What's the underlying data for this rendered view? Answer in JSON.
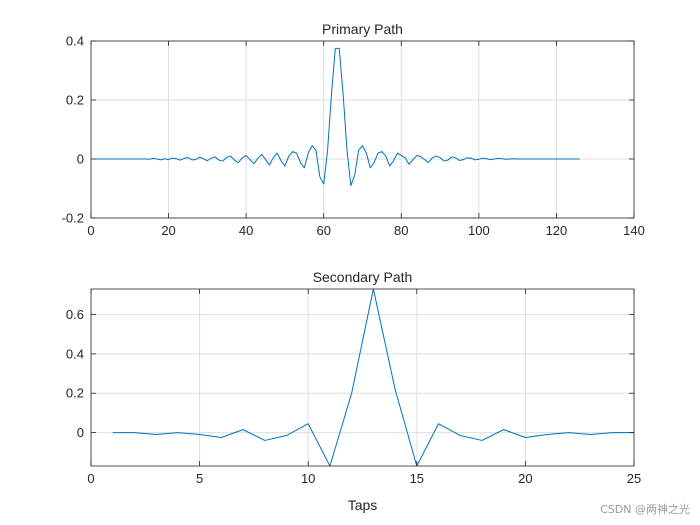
{
  "watermark": "CSDN @两神之光",
  "chart_data": [
    {
      "type": "line",
      "title": "Primary Path",
      "xlabel": "",
      "ylabel": "",
      "xlim": [
        0,
        140
      ],
      "ylim": [
        -0.2,
        0.4
      ],
      "xticks": [
        0,
        20,
        40,
        60,
        80,
        100,
        120,
        140
      ],
      "yticks": [
        -0.2,
        0,
        0.2,
        0.4
      ],
      "xtick_labels": [
        "0",
        "20",
        "40",
        "60",
        "80",
        "100",
        "120",
        "140"
      ],
      "ytick_labels": [
        "-0.2",
        "0",
        "0.2",
        "0.4"
      ],
      "grid": true,
      "line_color": "#0072BD",
      "series": [
        {
          "x": [
            1,
            2,
            3,
            4,
            5,
            6,
            7,
            8,
            9,
            10,
            11,
            12,
            13,
            14,
            15,
            16,
            17,
            18,
            19,
            20,
            21,
            22,
            23,
            24,
            25,
            26,
            27,
            28,
            29,
            30,
            31,
            32,
            33,
            34,
            35,
            36,
            37,
            38,
            39,
            40,
            41,
            42,
            43,
            44,
            45,
            46,
            47,
            48,
            49,
            50,
            51,
            52,
            53,
            54,
            55,
            56,
            57,
            58,
            59,
            60,
            61,
            62,
            63,
            64,
            65,
            66,
            67,
            68,
            69,
            70,
            71,
            72,
            73,
            74,
            75,
            76,
            77,
            78,
            79,
            80,
            81,
            82,
            83,
            84,
            85,
            86,
            87,
            88,
            89,
            90,
            91,
            92,
            93,
            94,
            95,
            96,
            97,
            98,
            99,
            100,
            101,
            102,
            103,
            104,
            105,
            106,
            107,
            108,
            109,
            110,
            111,
            112,
            113,
            114,
            115,
            116,
            117,
            118,
            119,
            120,
            121,
            122,
            123,
            124,
            125,
            126
          ],
          "y": [
            0,
            0,
            0,
            0,
            0,
            0,
            0,
            0,
            0,
            0,
            0,
            0,
            0,
            0,
            -0.001,
            0.002,
            0,
            -0.003,
            0.001,
            -0.002,
            0.003,
            0.001,
            -0.004,
            0.002,
            0.005,
            -0.003,
            -0.002,
            0.006,
            0.001,
            -0.006,
            0.003,
            0.007,
            -0.004,
            -0.007,
            0.006,
            0.01,
            -0.004,
            -0.012,
            0.004,
            0.012,
            -0.002,
            -0.016,
            0.002,
            0.016,
            -0.002,
            -0.02,
            0.004,
            0.02,
            -0.006,
            -0.024,
            0.01,
            0.025,
            0.02,
            -0.012,
            -0.03,
            0.02,
            0.045,
            0.03,
            -0.06,
            -0.085,
            0.03,
            0.22,
            0.375,
            0.375,
            0.22,
            0.03,
            -0.09,
            -0.055,
            0.03,
            0.045,
            0.02,
            -0.03,
            -0.012,
            0.02,
            0.025,
            0.01,
            -0.024,
            -0.006,
            0.02,
            0.012,
            0.004,
            -0.018,
            -0.002,
            0.012,
            0.008,
            -0.002,
            -0.012,
            0.004,
            0.01,
            0.005,
            -0.007,
            -0.004,
            0.007,
            0.004,
            -0.005,
            -0.002,
            0.004,
            0.003,
            -0.003,
            -0.001,
            0.003,
            0.001,
            -0.002,
            0,
            0.002,
            0.001,
            -0.001,
            0,
            0.001,
            0,
            0,
            0,
            0,
            0,
            0,
            0,
            0,
            0,
            0,
            0,
            0,
            0,
            0,
            0,
            0,
            0
          ]
        }
      ]
    },
    {
      "type": "line",
      "title": "Secondary Path",
      "xlabel": "Taps",
      "ylabel": "",
      "xlim": [
        0,
        25
      ],
      "ylim": [
        -0.17,
        0.73
      ],
      "xticks": [
        0,
        5,
        10,
        15,
        20,
        25
      ],
      "yticks": [
        0,
        0.2,
        0.4,
        0.6
      ],
      "xtick_labels": [
        "0",
        "5",
        "10",
        "15",
        "20",
        "25"
      ],
      "ytick_labels": [
        "0",
        "0.2",
        "0.4",
        "0.6"
      ],
      "grid": true,
      "line_color": "#0072BD",
      "series": [
        {
          "x": [
            1,
            2,
            3,
            4,
            5,
            6,
            7,
            8,
            9,
            10,
            11,
            12,
            13,
            14,
            15,
            16,
            17,
            18,
            19,
            20,
            21,
            22,
            23,
            24,
            25
          ],
          "y": [
            0.0,
            0.0,
            -0.01,
            0.0,
            -0.01,
            -0.025,
            0.015,
            -0.04,
            -0.015,
            0.045,
            -0.17,
            0.2,
            0.73,
            0.22,
            -0.17,
            0.045,
            -0.015,
            -0.04,
            0.015,
            -0.025,
            -0.01,
            0.0,
            -0.01,
            0.0,
            0.0
          ]
        }
      ]
    }
  ]
}
